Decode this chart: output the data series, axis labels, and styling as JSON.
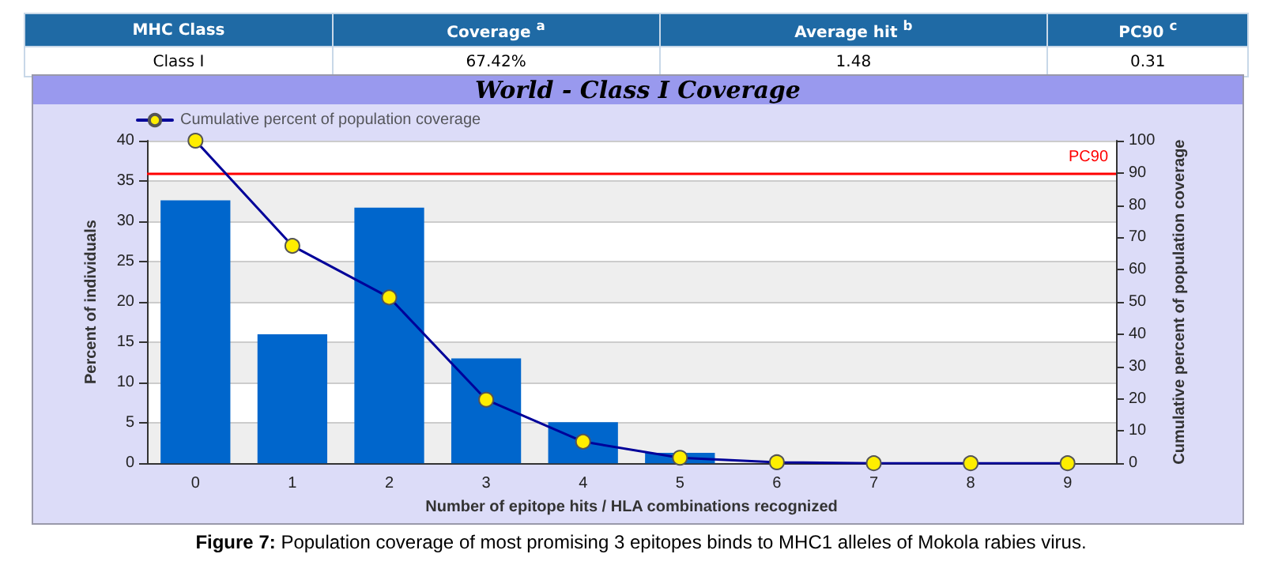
{
  "chart_data": [
    {
      "type": "other",
      "annotations": [
        "MHC Class",
        "Coverage $^{a}$",
        "Average hit $^{b}$",
        "PC90 $^{c}$",
        "Class I",
        "67.42%",
        "1.48",
        "0.31"
      ]
    },
    {
      "type": "bar",
      "title": "World - Class I Coverage",
      "xlabel": "Number of epitope hits / HLA combinations recognized",
      "ylabel": "Percent of individuals",
      "y2label": "Cumulative percent of population coverage",
      "categories": [
        "0",
        "1",
        "2",
        "3",
        "4",
        "5",
        "6",
        "7",
        "8",
        "9"
      ],
      "series": [
        {
          "type": "bar",
          "color": "#0066cc",
          "values": [
            32.6,
            16,
            31.7,
            13,
            5.1,
            1.3,
            0,
            0,
            0,
            0
          ]
        },
        {
          "type": "line",
          "name": "Cumulative percent of population coverage",
          "color": "#000099",
          "axis": "y2",
          "marker": "circle",
          "values": [
            100,
            67.4,
            51.4,
            19.7,
            6.7,
            1.7,
            0.3,
            0,
            0,
            0
          ]
        }
      ],
      "ylim": [
        0,
        40
      ],
      "yticks": [
        0,
        5,
        10,
        15,
        20,
        25,
        30,
        35,
        40
      ],
      "y2lim": [
        0,
        100
      ],
      "y2ticks": [
        0,
        10,
        20,
        30,
        40,
        50,
        60,
        70,
        80,
        90,
        100
      ],
      "ref_lines": [
        {
          "axis": "y2",
          "value": 90,
          "label": "PC90",
          "color": "#ff0000"
        }
      ],
      "grid": "y",
      "legend": "top left",
      "annotations": [
        "Figure 7: Population coverage of most promising 3 epitopes binds to MHC1 alleles of Mokola rabies virus."
      ]
    }
  ]
}
